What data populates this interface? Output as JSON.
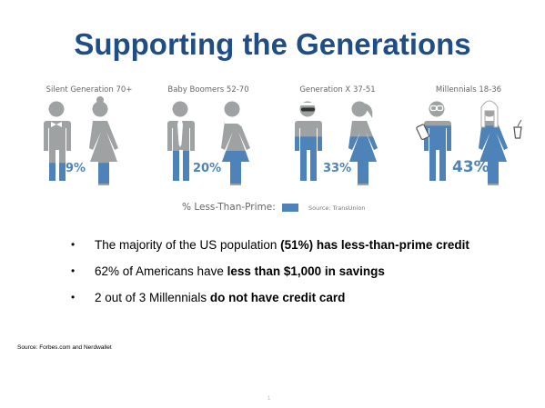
{
  "title": "Supporting the Generations",
  "generations": [
    {
      "label": "Silent Generation 70+",
      "percent_text": "9%",
      "less_than_prime_fraction": 0.09
    },
    {
      "label": "Baby Boomers 52-70",
      "percent_text": "20%",
      "less_than_prime_fraction": 0.2
    },
    {
      "label": "Generation X 37-51",
      "percent_text": "33%",
      "less_than_prime_fraction": 0.33
    },
    {
      "label": "Millennials 18-36",
      "percent_text": "43%",
      "less_than_prime_fraction": 0.43
    }
  ],
  "legend": {
    "label": "% Less-Than-Prime:",
    "source": "Source: TransUnion"
  },
  "bullets": [
    {
      "dot": "•",
      "pre": "The majority of the US population ",
      "bold": "(51%) has less-than-prime credit",
      "post": ""
    },
    {
      "dot": "•",
      "pre": "62% of Americans have ",
      "bold": "less than $1,000 in savings",
      "post": ""
    },
    {
      "dot": "•",
      "pre": "2 out of 3 Millennials ",
      "bold": "do not have credit card",
      "post": ""
    }
  ],
  "source_note": "Source: Forbes.com and Nerdwallet",
  "page_number": "1",
  "colors": {
    "title": "#1f4e86",
    "figure_gray": "#9ea2a2",
    "fill_blue": "#4d83b8",
    "label_gray": "#666666"
  },
  "icons": [
    "man-figure-icon",
    "woman-figure-icon",
    "bow-tie-icon",
    "necktie-icon",
    "scarf-icon",
    "headband-sunglasses-icon",
    "ponytail-icon",
    "smartphone-icon",
    "glasses-icon",
    "coffee-cup-icon"
  ]
}
